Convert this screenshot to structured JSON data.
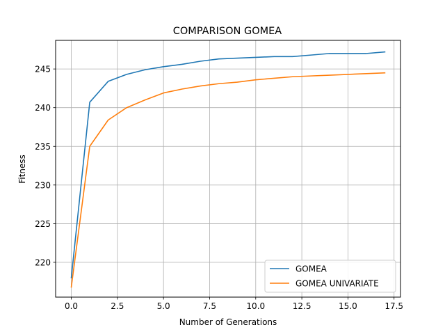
{
  "chart_data": {
    "type": "line",
    "title": "COMPARISON GOMEA",
    "xlabel": "Number of Generations",
    "ylabel": "Fitness",
    "xlim": [
      -0.85,
      17.85
    ],
    "ylim": [
      215.5,
      248.7
    ],
    "xticks": [
      0.0,
      2.5,
      5.0,
      7.5,
      10.0,
      12.5,
      15.0,
      17.5
    ],
    "xtick_labels": [
      "0.0",
      "2.5",
      "5.0",
      "7.5",
      "10.0",
      "12.5",
      "15.0",
      "17.5"
    ],
    "yticks": [
      220,
      225,
      230,
      235,
      240,
      245
    ],
    "ytick_labels": [
      "220",
      "225",
      "230",
      "235",
      "240",
      "245"
    ],
    "grid": true,
    "legend_position": "bottom-right",
    "x": [
      0,
      1,
      2,
      3,
      4,
      5,
      6,
      7,
      8,
      9,
      10,
      11,
      12,
      13,
      14,
      15,
      16,
      17
    ],
    "series": [
      {
        "name": "GOMEA",
        "color": "#1f77b4",
        "values": [
          218.0,
          240.7,
          243.4,
          244.3,
          244.9,
          245.3,
          245.6,
          246.0,
          246.3,
          246.4,
          246.5,
          246.6,
          246.6,
          246.8,
          247.0,
          247.0,
          247.0,
          247.2
        ]
      },
      {
        "name": "GOMEA UNIVARIATE",
        "color": "#ff7f0e",
        "values": [
          216.8,
          235.0,
          238.4,
          240.0,
          241.0,
          241.9,
          242.4,
          242.8,
          243.1,
          243.3,
          243.6,
          243.8,
          244.0,
          244.1,
          244.2,
          244.3,
          244.4,
          244.5
        ]
      }
    ]
  }
}
